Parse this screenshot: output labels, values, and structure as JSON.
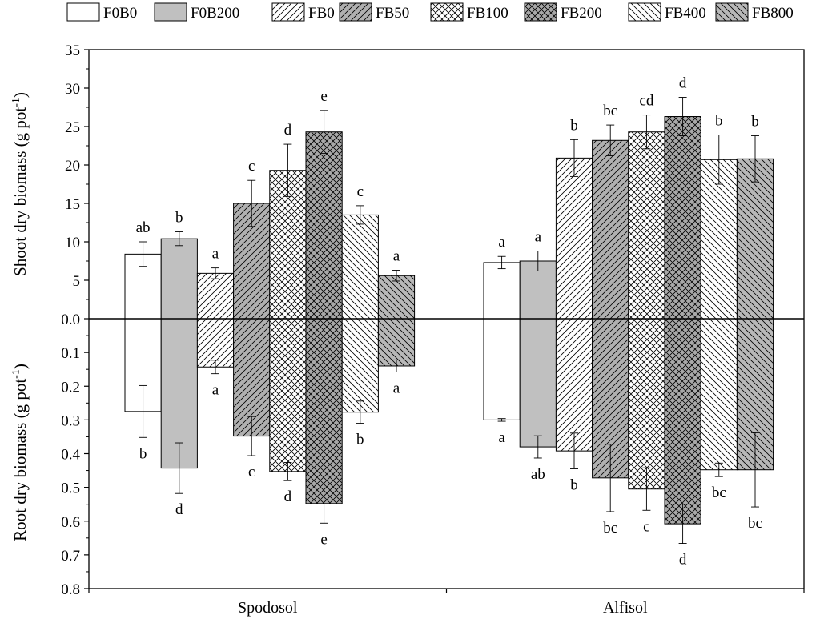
{
  "chart_data": {
    "type": "bar",
    "subtype": "mirrored-grouped-bar-with-error-bars",
    "categories": [
      "Spodosol",
      "Alfisol"
    ],
    "legend": {
      "placement": "top",
      "entries": [
        "F0B0",
        "F0B200",
        "FB0",
        "FB50",
        "FB100",
        "FB200",
        "FB400",
        "FB800"
      ]
    },
    "top_panel": {
      "ylabel": "Shoot dry biomass (g pot",
      "ylabel_sup": "-1",
      "ylabel_close": ")",
      "ylim": [
        0,
        35
      ],
      "ticks": [
        "0.0",
        "5",
        "10",
        "15",
        "20",
        "25",
        "30",
        "35"
      ],
      "series": [
        {
          "name": "F0B0",
          "values": [
            8.4,
            7.3
          ],
          "errors": [
            1.6,
            0.8
          ],
          "letters": [
            "ab",
            "a"
          ]
        },
        {
          "name": "F0B200",
          "values": [
            10.4,
            7.5
          ],
          "errors": [
            0.9,
            1.3
          ],
          "letters": [
            "b",
            "a"
          ]
        },
        {
          "name": "FB0",
          "values": [
            5.9,
            20.9
          ],
          "errors": [
            0.7,
            2.4
          ],
          "letters": [
            "a",
            "b"
          ]
        },
        {
          "name": "FB50",
          "values": [
            15.0,
            23.2
          ],
          "errors": [
            3.0,
            2.0
          ],
          "letters": [
            "c",
            "bc"
          ]
        },
        {
          "name": "FB100",
          "values": [
            19.3,
            24.3
          ],
          "errors": [
            3.4,
            2.2
          ],
          "letters": [
            "d",
            "cd"
          ]
        },
        {
          "name": "FB200",
          "values": [
            24.3,
            26.3
          ],
          "errors": [
            2.8,
            2.5
          ],
          "letters": [
            "e",
            "d"
          ]
        },
        {
          "name": "FB400",
          "values": [
            13.5,
            20.7
          ],
          "errors": [
            1.2,
            3.2
          ],
          "letters": [
            "c",
            "b"
          ]
        },
        {
          "name": "FB800",
          "values": [
            5.6,
            20.8
          ],
          "errors": [
            0.7,
            3.0
          ],
          "letters": [
            "a",
            "b"
          ]
        }
      ]
    },
    "bottom_panel": {
      "ylabel": "Root dry biomass (g pot",
      "ylabel_sup": "-1",
      "ylabel_close": ")",
      "ylim": [
        0,
        0.8
      ],
      "ticks": [
        "0.1",
        "0.2",
        "0.3",
        "0.4",
        "0.5",
        "0.6",
        "0.7",
        "0.8"
      ],
      "series": [
        {
          "name": "F0B0",
          "values": [
            0.275,
            0.3
          ],
          "errors": [
            0.077,
            0.004
          ],
          "letters": [
            "b",
            "a"
          ]
        },
        {
          "name": "F0B200",
          "values": [
            0.443,
            0.38
          ],
          "errors": [
            0.075,
            0.033
          ],
          "letters": [
            "d",
            "ab"
          ]
        },
        {
          "name": "FB0",
          "values": [
            0.143,
            0.392
          ],
          "errors": [
            0.02,
            0.053
          ],
          "letters": [
            "a",
            "b"
          ]
        },
        {
          "name": "FB50",
          "values": [
            0.348,
            0.472
          ],
          "errors": [
            0.058,
            0.1
          ],
          "letters": [
            "c",
            "bc"
          ]
        },
        {
          "name": "FB100",
          "values": [
            0.453,
            0.505
          ],
          "errors": [
            0.027,
            0.063
          ],
          "letters": [
            "d",
            "c"
          ]
        },
        {
          "name": "FB200",
          "values": [
            0.548,
            0.608
          ],
          "errors": [
            0.058,
            0.058
          ],
          "letters": [
            "e",
            "d"
          ]
        },
        {
          "name": "FB400",
          "values": [
            0.277,
            0.448
          ],
          "errors": [
            0.033,
            0.02
          ],
          "letters": [
            "b",
            "bc"
          ]
        },
        {
          "name": "FB800",
          "values": [
            0.14,
            0.448
          ],
          "errors": [
            0.018,
            0.11
          ],
          "letters": [
            "a",
            "bc"
          ]
        }
      ]
    },
    "styles": {
      "F0B0": {
        "fill": "#ffffff",
        "pattern": "none"
      },
      "F0B200": {
        "fill": "#c0c0c0",
        "pattern": "none"
      },
      "FB0": {
        "fill": "#ffffff",
        "pattern": "forward-diagonal"
      },
      "FB50": {
        "fill": "#b0b0b0",
        "pattern": "forward-diagonal"
      },
      "FB100": {
        "fill": "#ffffff",
        "pattern": "crosshatch"
      },
      "FB200": {
        "fill": "#a8a8a8",
        "pattern": "crosshatch"
      },
      "FB400": {
        "fill": "#ffffff",
        "pattern": "back-diagonal"
      },
      "FB800": {
        "fill": "#b8b8b8",
        "pattern": "back-diagonal"
      }
    }
  }
}
